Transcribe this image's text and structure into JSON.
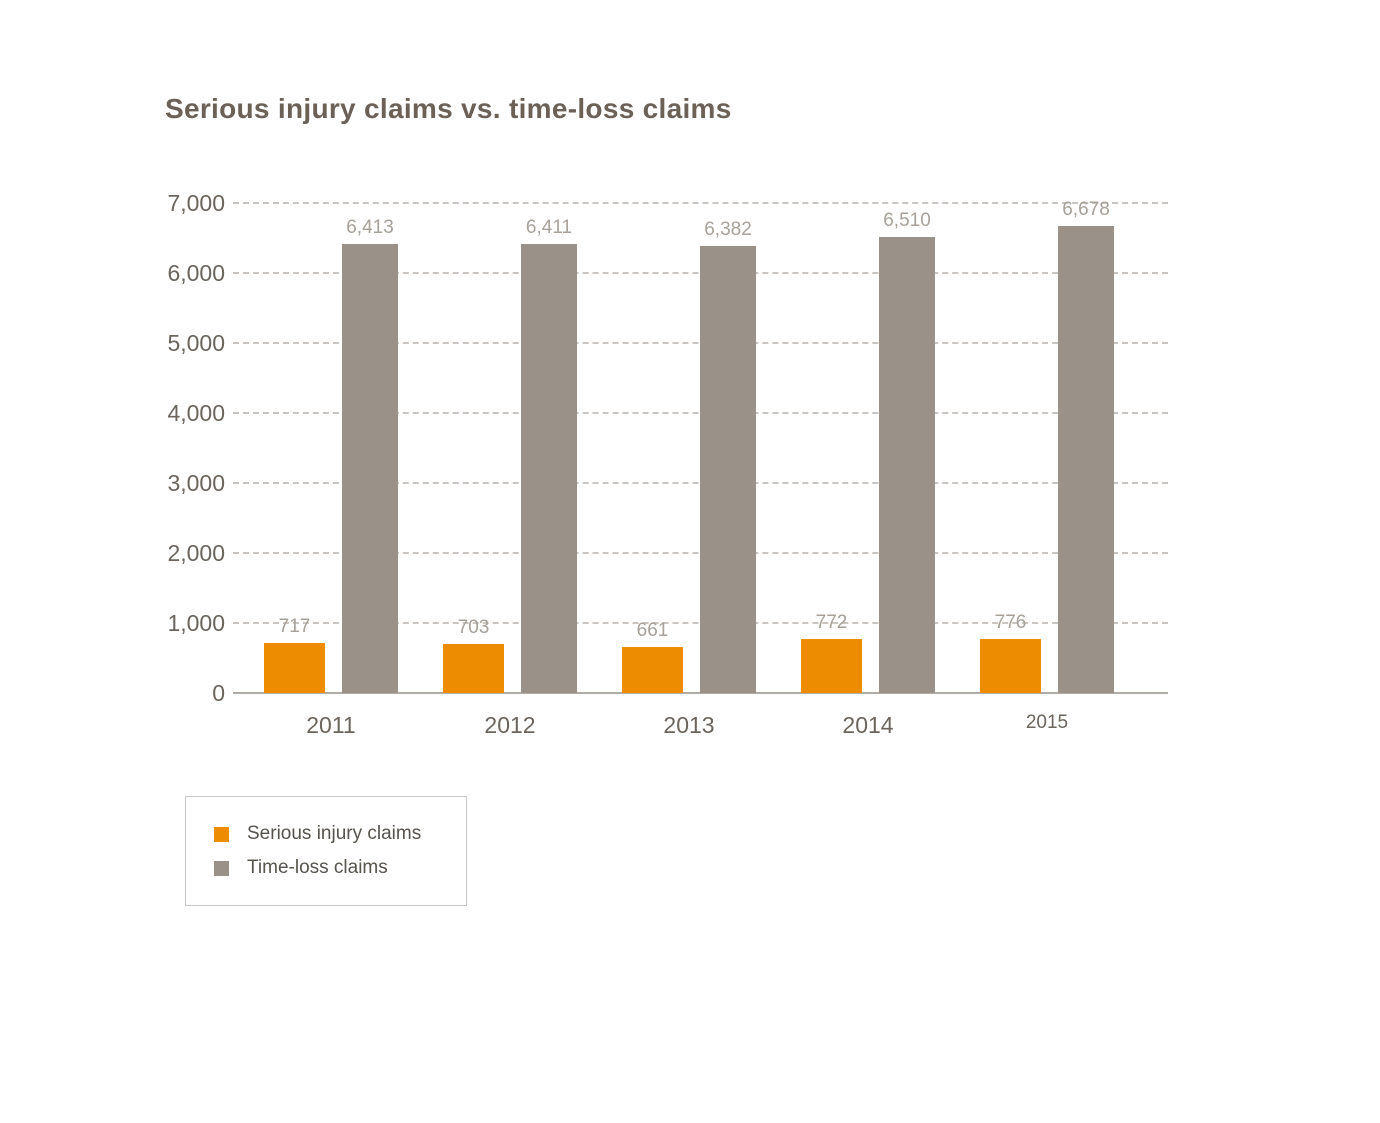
{
  "title": "Serious injury claims vs. time-loss claims",
  "chart_data": {
    "type": "bar",
    "categories": [
      "2011",
      "2012",
      "2013",
      "2014",
      "2015"
    ],
    "series": [
      {
        "name": "Serious injury claims",
        "color": "#ee8c00",
        "values": [
          717,
          703,
          661,
          772,
          776
        ]
      },
      {
        "name": "Time-loss claims",
        "color": "#9a9189",
        "values": [
          6413,
          6411,
          6382,
          6510,
          6678
        ]
      }
    ],
    "title": "Serious injury claims vs. time-loss claims",
    "xlabel": "",
    "ylabel": "",
    "ylim": [
      0,
      7000
    ],
    "ytick_step": 1000,
    "ytick_labels": [
      "0",
      "1,000",
      "2,000",
      "3,000",
      "4,000",
      "5,000",
      "6,000",
      "7,000"
    ],
    "grid": "horizontal-dashed",
    "value_labels": true,
    "legend_position": "bottom-left"
  },
  "legend": {
    "items": [
      {
        "label": "Serious injury claims",
        "color": "#ee8c00"
      },
      {
        "label": "Time-loss claims",
        "color": "#9a9189"
      }
    ]
  },
  "colors": {
    "background": "#ffffff",
    "title_text": "#6b6157",
    "axis_text": "#6b655e",
    "value_label_text": "#a7a19a",
    "gridline": "#cac5c0",
    "axis_line": "#b2aca6",
    "legend_border": "#c9c7c4",
    "serious_injury_bar": "#ee8c00",
    "time_loss_bar": "#9a9189"
  }
}
